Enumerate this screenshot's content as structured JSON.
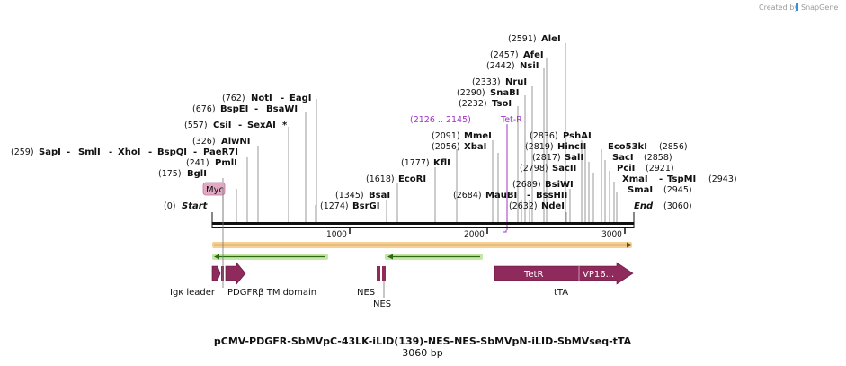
{
  "credit": {
    "prefix": "Created by",
    "brand": "SnapGene"
  },
  "title": "pCMV-PDGFR-SbMVpC-43LK-iLID(139)-NES-NES-SbMVpN-iLID-SbMVseq-tTA",
  "subtitle": "3060 bp",
  "ends": {
    "start": {
      "pos": "(0)",
      "label": "Start"
    },
    "end": {
      "label": "End",
      "pos": "(3060)"
    }
  },
  "ruler": [
    "1000",
    "2000",
    "3000"
  ],
  "sites": [
    {
      "pos": "(259)",
      "name": "SapI"
    },
    {
      "name": "SmlI"
    },
    {
      "name": "XhoI"
    },
    {
      "name": "BspQI"
    },
    {
      "name": "PaeR7I"
    },
    {
      "pos": "(175)",
      "name": "BglI"
    },
    {
      "pos": "(241)",
      "name": "PmlI"
    },
    {
      "pos": "(326)",
      "name": "AlwNI"
    },
    {
      "pos": "(557)",
      "name": "CsiI"
    },
    {
      "name": "SexAI",
      "star": "*"
    },
    {
      "pos": "(676)",
      "name": "BspEI"
    },
    {
      "name": "BsaWI"
    },
    {
      "pos": "(762)",
      "name": "NotI"
    },
    {
      "name": "EagI"
    },
    {
      "pos": "(1274)",
      "name": "BsrGI"
    },
    {
      "pos": "(1345)",
      "name": "BsaI"
    },
    {
      "pos": "(1618)",
      "name": "EcoRI"
    },
    {
      "pos": "(1777)",
      "name": "KflI"
    },
    {
      "pos": "(2056)",
      "name": "XbaI"
    },
    {
      "pos": "(2091)",
      "name": "MmeI"
    },
    {
      "pos": "(2232)",
      "name": "TsoI"
    },
    {
      "pos": "(2290)",
      "name": "SnaBI"
    },
    {
      "pos": "(2333)",
      "name": "NruI"
    },
    {
      "pos": "(2442)",
      "name": "NsiI"
    },
    {
      "pos": "(2457)",
      "name": "AfeI"
    },
    {
      "pos": "(2591)",
      "name": "AleI"
    },
    {
      "pos": "(2684)",
      "name": "MauBI"
    },
    {
      "name": "BssHII"
    },
    {
      "pos": "(2632)",
      "name": "NdeI"
    },
    {
      "pos": "(2689)",
      "name": "BsiWI"
    },
    {
      "pos": "(2798)",
      "name": "SacII"
    },
    {
      "pos": "(2817)",
      "name": "SalI"
    },
    {
      "pos": "(2819)",
      "name": "HincII"
    },
    {
      "pos": "(2836)",
      "name": "PshAI"
    },
    {
      "name": "Eco53kI",
      "pos": "(2856)"
    },
    {
      "name": "SacI",
      "pos": "(2858)"
    },
    {
      "name": "PciI",
      "pos": "(2921)"
    },
    {
      "name": "XmaI"
    },
    {
      "name": "TspMI",
      "pos": "(2943)"
    },
    {
      "name": "SmaI",
      "pos": "(2945)"
    }
  ],
  "primer": {
    "range": "(2126 .. 2145)",
    "name": "Tet-R",
    "color": "#a133c6"
  },
  "features": {
    "myc": "Myc",
    "igk": "Igκ leader",
    "pdgfr": "PDGFRβ TM domain",
    "nes1": "NES",
    "nes2": "NES",
    "tetr": "TetR",
    "vp16": "VP16...",
    "tta": "tTA"
  },
  "colors": {
    "feature": "#8e2a5c",
    "myc": "#e3a9c4",
    "orf_orange": "#f2a23a",
    "orf_green": "#6ab52d",
    "backbone": "#111111"
  }
}
